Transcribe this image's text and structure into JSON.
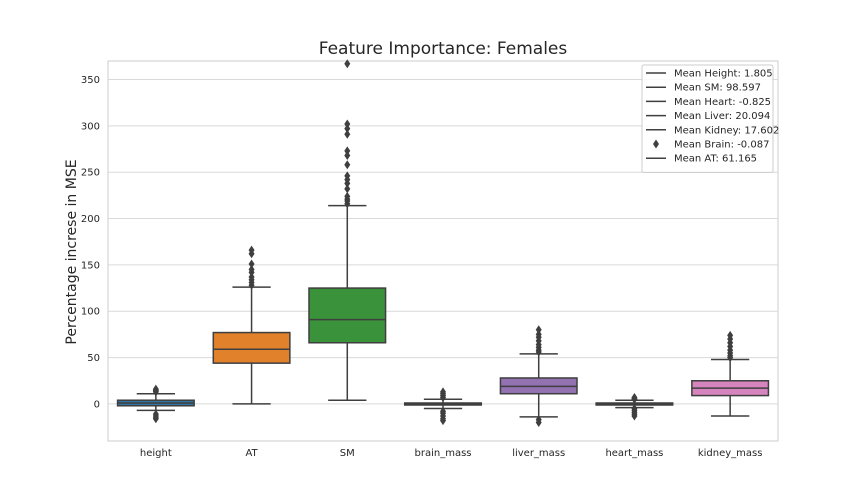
{
  "chart_data": {
    "type": "box",
    "title": "Feature Importance: Females",
    "xlabel": "",
    "ylabel": "Percentage increse in MSE",
    "ylim": [
      -40,
      370
    ],
    "yticks": [
      0,
      50,
      100,
      150,
      200,
      250,
      300,
      350
    ],
    "grid": "horizontal",
    "legend_position": "top-right",
    "categories": [
      "height",
      "AT",
      "SM",
      "brain_mass",
      "liver_mass",
      "heart_mass",
      "kidney_mass"
    ],
    "boxes": [
      {
        "name": "height",
        "color": "#3274a1",
        "whisker_low": -7,
        "q1": -2,
        "median": 1,
        "q3": 4,
        "whisker_high": 11,
        "outliers": [
          13,
          14,
          15,
          16,
          -11,
          -13,
          -15,
          -16
        ]
      },
      {
        "name": "AT",
        "color": "#e1812c",
        "whisker_low": 0,
        "q1": 44,
        "median": 59,
        "q3": 77,
        "whisker_high": 126,
        "outliers": [
          128,
          131,
          134,
          137,
          142,
          145,
          151,
          162,
          166
        ]
      },
      {
        "name": "SM",
        "color": "#3a923a",
        "whisker_low": 4,
        "q1": 66,
        "median": 91,
        "q3": 125,
        "whisker_high": 214,
        "outliers": [
          216,
          219,
          221,
          224,
          232,
          238,
          242,
          246,
          258,
          268,
          273,
          291,
          297,
          302,
          367
        ]
      },
      {
        "name": "brain_mass",
        "color": "#c03d3e",
        "whisker_low": -5,
        "q1": -1,
        "median": 0,
        "q3": 1,
        "whisker_high": 5,
        "outliers": [
          7,
          9,
          11,
          13,
          -8,
          -10,
          -13,
          -16,
          -18
        ]
      },
      {
        "name": "liver_mass",
        "color": "#9372b2",
        "whisker_low": -14,
        "q1": 11,
        "median": 19,
        "q3": 28,
        "whisker_high": 54,
        "outliers": [
          56,
          58,
          61,
          64,
          68,
          72,
          75,
          80,
          -17,
          -20
        ]
      },
      {
        "name": "heart_mass",
        "color": "#845b53",
        "whisker_low": -4,
        "q1": -1,
        "median": 0,
        "q3": 1,
        "whisker_high": 4,
        "outliers": [
          5,
          6,
          7,
          -5,
          -7,
          -9,
          -11,
          -13
        ]
      },
      {
        "name": "kidney_mass",
        "color": "#d684bd",
        "whisker_low": -13,
        "q1": 9,
        "median": 17,
        "q3": 25,
        "whisker_high": 48,
        "outliers": [
          50,
          52,
          55,
          58,
          62,
          66,
          70,
          74
        ]
      }
    ],
    "legend": [
      {
        "label": "Mean Height: 1.805",
        "marker": "line"
      },
      {
        "label": "Mean SM: 98.597",
        "marker": "line"
      },
      {
        "label": "Mean Heart: -0.825",
        "marker": "line"
      },
      {
        "label": "Mean Liver: 20.094",
        "marker": "line"
      },
      {
        "label": "Mean Kidney: 17.602",
        "marker": "line"
      },
      {
        "label": "Mean Brain: -0.087",
        "marker": "diamond"
      },
      {
        "label": "Mean AT: 61.165",
        "marker": "line"
      }
    ]
  }
}
